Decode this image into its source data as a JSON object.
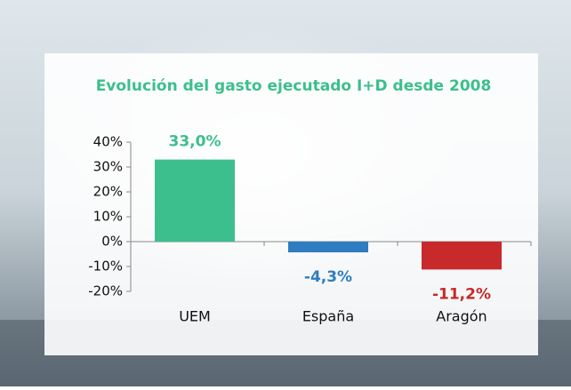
{
  "chart_data": {
    "type": "bar",
    "title": "Evolución del gasto ejecutado I+D desde 2008",
    "categories": [
      "UEM",
      "España",
      "Aragón"
    ],
    "values": [
      33.0,
      -4.3,
      -11.2
    ],
    "value_labels": [
      "33,0%",
      "-4,3%",
      "-11,2%"
    ],
    "colors": [
      "#3cbf8d",
      "#2f7dc0",
      "#c8292b"
    ],
    "ylim": [
      -20,
      40
    ],
    "yticks": [
      {
        "value": 40,
        "label": "40%"
      },
      {
        "value": 30,
        "label": "30%"
      },
      {
        "value": 20,
        "label": "20%"
      },
      {
        "value": 10,
        "label": "10%"
      },
      {
        "value": 0,
        "label": "0%"
      },
      {
        "value": -10,
        "label": "-10%"
      },
      {
        "value": -20,
        "label": "-20%"
      }
    ],
    "grid": false
  }
}
